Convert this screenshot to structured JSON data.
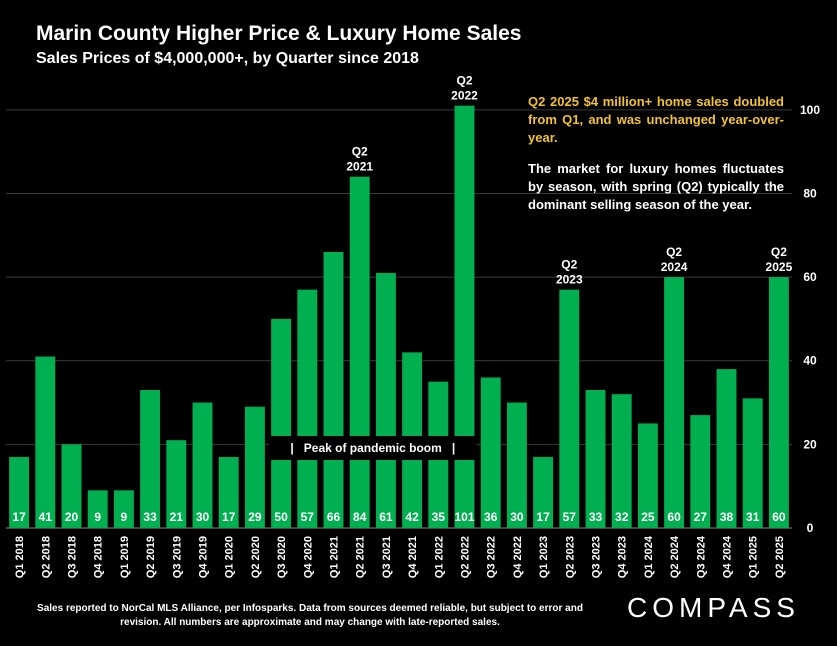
{
  "header": {
    "title": "Marin County Higher Price & Luxury Home Sales",
    "subtitle": "Sales Prices of $4,000,000+, by Quarter since 2018"
  },
  "notes": {
    "highlight": "Q2 2025 $4 million+ home sales doubled from Q1, and was unchanged year-over-year.",
    "body": "The market for luxury homes fluctuates by season, with spring (Q2) typically the dominant selling season of the year."
  },
  "footer": {
    "text": "Sales reported to NorCal MLS Alliance, per Infosparks. Data from sources deemed reliable, but subject to error and revision. All numbers are approximate and may change with late-reported sales.",
    "logo": "COMPASS"
  },
  "chart_data": {
    "type": "bar",
    "categories": [
      "Q1 2018",
      "Q2 2018",
      "Q3 2018",
      "Q4 2018",
      "Q1 2019",
      "Q2 2019",
      "Q3 2019",
      "Q4 2019",
      "Q1 2020",
      "Q2 2020",
      "Q3 2020",
      "Q4 2020",
      "Q1 2021",
      "Q2 2021",
      "Q3 2021",
      "Q4 2021",
      "Q1 2022",
      "Q2 2022",
      "Q3 2022",
      "Q4 2022",
      "Q1 2023",
      "Q2 2023",
      "Q3 2023",
      "Q4 2023",
      "Q1 2024",
      "Q2 2024",
      "Q3 2024",
      "Q4 2024",
      "Q1 2025",
      "Q2 2025"
    ],
    "values": [
      17,
      41,
      20,
      9,
      9,
      33,
      21,
      30,
      17,
      29,
      50,
      57,
      66,
      84,
      61,
      42,
      35,
      101,
      36,
      30,
      17,
      57,
      33,
      32,
      25,
      60,
      27,
      38,
      31,
      60
    ],
    "ylim": [
      0,
      110
    ],
    "yticks": [
      0,
      20,
      40,
      60,
      80,
      100
    ],
    "grid": true,
    "bar_color": "#00B050",
    "annotations": [
      {
        "category": "Q2 2021",
        "line1": "Q2",
        "line2": "2021"
      },
      {
        "category": "Q2 2022",
        "line1": "Q2",
        "line2": "2022"
      },
      {
        "category": "Q2 2023",
        "line1": "Q2",
        "line2": "2023"
      },
      {
        "category": "Q2 2024",
        "line1": "Q2",
        "line2": "2024"
      },
      {
        "category": "Q2 2025",
        "line1": "Q2",
        "line2": "2025"
      }
    ],
    "period_label": {
      "text": "|   Peak of pandemic boom   |",
      "from": "Q3 2020",
      "to": "Q2 2022"
    }
  }
}
